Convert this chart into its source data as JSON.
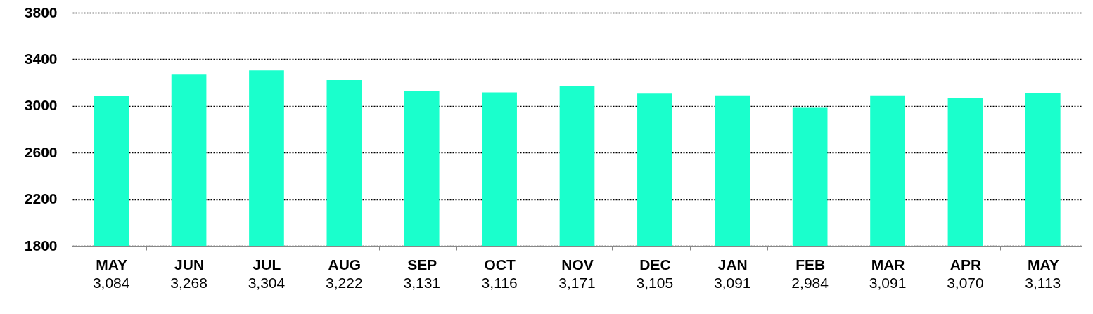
{
  "chart_data": {
    "type": "bar",
    "categories": [
      "MAY",
      "JUN",
      "JUL",
      "AUG",
      "SEP",
      "OCT",
      "NOV",
      "DEC",
      "JAN",
      "FEB",
      "MAR",
      "APR",
      "MAY"
    ],
    "values": [
      3084,
      3268,
      3304,
      3222,
      3131,
      3116,
      3171,
      3105,
      3091,
      2984,
      3091,
      3070,
      3113
    ],
    "value_labels": [
      "3,084",
      "3,268",
      "3,304",
      "3,222",
      "3,131",
      "3,116",
      "3,171",
      "3,105",
      "3,091",
      "2,984",
      "3,091",
      "3,070",
      "3,113"
    ],
    "color": "#1affcc",
    "ylim": [
      1800,
      3800
    ],
    "yticks": [
      1800,
      2200,
      2600,
      3000,
      3400,
      3800
    ],
    "grid": "y"
  }
}
